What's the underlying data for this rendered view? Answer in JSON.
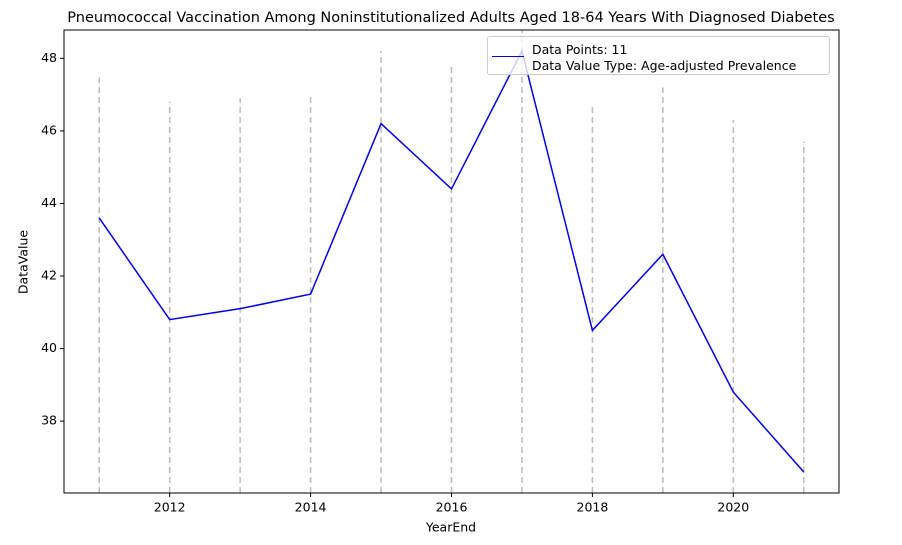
{
  "chart_data": {
    "type": "line",
    "title": "Pneumococcal Vaccination Among Noninstitutionalized Adults Aged 18-64 Years With Diagnosed Diabetes",
    "x_label": "YearEnd",
    "y_label": "DataValue",
    "x": [
      2011,
      2012,
      2013,
      2014,
      2015,
      2016,
      2017,
      2018,
      2019,
      2020,
      2021
    ],
    "series": [
      {
        "name": "Data Points: 11\nData Value Type: Age-adjusted Prevalence",
        "color": "#0000ee",
        "values": [
          43.6,
          40.8,
          41.1,
          41.5,
          46.2,
          44.4,
          48.2,
          40.5,
          42.6,
          38.8,
          36.6
        ]
      }
    ],
    "reference_lines": {
      "color": "#bbbbbb",
      "values": [
        47.5,
        46.8,
        46.9,
        47.0,
        48.2,
        47.8,
        48.9,
        46.7,
        47.2,
        46.3,
        45.7
      ]
    },
    "xlim": [
      2010.5,
      2021.5
    ],
    "xticks": [
      2012,
      2014,
      2016,
      2018,
      2020
    ],
    "ylim": [
      36.02,
      48.78
    ],
    "yticks": [
      38,
      40,
      42,
      44,
      46,
      48
    ],
    "legend": "upper right"
  }
}
